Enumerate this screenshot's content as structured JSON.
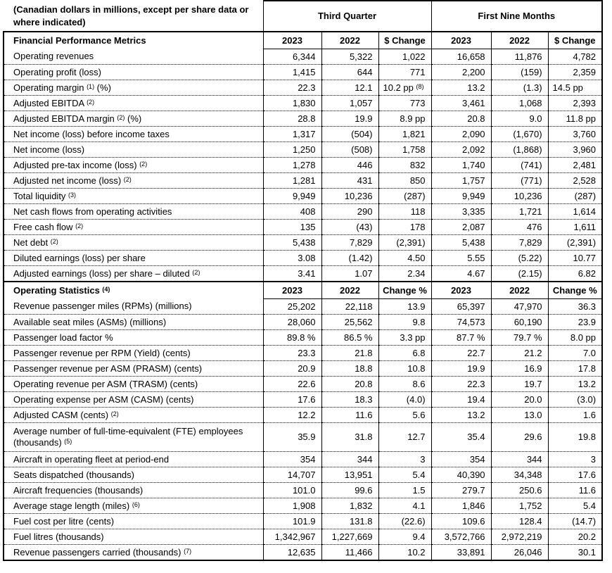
{
  "colors": {
    "text": "#000000",
    "background": "#ffffff",
    "border": "#000000"
  },
  "table": {
    "unit_note": "(Canadian dollars in millions, except per share data or where indicated)",
    "col_groups": [
      "Third Quarter",
      "First Nine Months"
    ],
    "sections": [
      {
        "header": {
          "label": "Financial Performance Metrics",
          "cols": [
            "2023",
            "2022",
            "$ Change",
            "2023",
            "2022",
            "$ Change"
          ]
        },
        "rows": [
          {
            "label": "Operating revenues",
            "values": [
              "6,344",
              "5,322",
              "1,022",
              "16,658",
              "11,876",
              "4,782"
            ]
          },
          {
            "label": "Operating profit (loss)",
            "values": [
              "1,415",
              "644",
              "771",
              "2,200",
              "(159)",
              "2,359"
            ]
          },
          {
            "label": "Operating margin ",
            "sup": "(1)",
            "suffix": " (%)",
            "values": [
              "22.3",
              "12.1",
              {
                "t": "10.2 pp ",
                "sup": "(8)",
                "align": "left"
              },
              "13.2",
              "(1.3)",
              {
                "t": "14.5 pp",
                "align": "left"
              }
            ]
          },
          {
            "label": "Adjusted EBITDA ",
            "sup": "(2)",
            "values": [
              "1,830",
              "1,057",
              "773",
              "3,461",
              "1,068",
              "2,393"
            ]
          },
          {
            "label": "Adjusted EBITDA margin ",
            "sup": "(2)",
            "suffix": " (%)",
            "values": [
              "28.8",
              "19.9",
              "8.9 pp",
              "20.8",
              "9.0",
              "11.8 pp"
            ]
          },
          {
            "label": "Net income (loss) before income taxes",
            "values": [
              "1,317",
              "(504)",
              "1,821",
              "2,090",
              "(1,670)",
              "3,760"
            ]
          },
          {
            "label": "Net income (loss)",
            "values": [
              "1,250",
              "(508)",
              "1,758",
              "2,092",
              "(1,868)",
              "3,960"
            ]
          },
          {
            "label": "Adjusted pre-tax income (loss) ",
            "sup": "(2)",
            "values": [
              "1,278",
              "446",
              "832",
              "1,740",
              "(741)",
              "2,481"
            ]
          },
          {
            "label": "Adjusted net income (loss) ",
            "sup": "(2)",
            "values": [
              "1,281",
              "431",
              "850",
              "1,757",
              "(771)",
              "2,528"
            ]
          },
          {
            "label": "Total liquidity ",
            "sup": "(3)",
            "values": [
              "9,949",
              "10,236",
              "(287)",
              "9,949",
              "10,236",
              "(287)"
            ]
          },
          {
            "label": "Net cash flows from operating activities",
            "values": [
              "408",
              "290",
              "118",
              "3,335",
              "1,721",
              "1,614"
            ]
          },
          {
            "label": "Free cash flow ",
            "sup": "(2)",
            "values": [
              "135",
              "(43)",
              "178",
              "2,087",
              "476",
              "1,611"
            ]
          },
          {
            "label": "Net debt ",
            "sup": "(2)",
            "values": [
              "5,438",
              "7,829",
              "(2,391)",
              "5,438",
              "7,829",
              "(2,391)"
            ]
          },
          {
            "label": "Diluted earnings (loss) per share",
            "values": [
              "3.08",
              "(1.42)",
              "4.50",
              "5.55",
              "(5.22)",
              "10.77"
            ]
          },
          {
            "label": "Adjusted earnings (loss) per share – diluted ",
            "sup": "(2)",
            "values": [
              "3.41",
              "1.07",
              "2.34",
              "4.67",
              "(2.15)",
              "6.82"
            ]
          }
        ]
      },
      {
        "header": {
          "label": "Operating Statistics ",
          "sup": "(4)",
          "cols": [
            "2023",
            "2022",
            "Change %",
            "2023",
            "2022",
            "Change %"
          ]
        },
        "rows": [
          {
            "label": "Revenue passenger miles (RPMs) (millions)",
            "values": [
              "25,202",
              "22,118",
              "13.9",
              "65,397",
              "47,970",
              "36.3"
            ]
          },
          {
            "label": "Available seat miles (ASMs) (millions)",
            "values": [
              "28,060",
              "25,562",
              "9.8",
              "74,573",
              "60,190",
              "23.9"
            ]
          },
          {
            "label": "Passenger load factor %",
            "values": [
              "89.8 %",
              "86.5 %",
              "3.3 pp",
              "87.7 %",
              "79.7 %",
              "8.0 pp"
            ]
          },
          {
            "label": "Passenger revenue per RPM (Yield) (cents)",
            "values": [
              "23.3",
              "21.8",
              "6.8",
              "22.7",
              "21.2",
              "7.0"
            ]
          },
          {
            "label": "Passenger revenue per ASM (PRASM) (cents)",
            "values": [
              "20.9",
              "18.8",
              "10.8",
              "19.9",
              "16.9",
              "17.8"
            ]
          },
          {
            "label": "Operating revenue per ASM (TRASM) (cents)",
            "values": [
              "22.6",
              "20.8",
              "8.6",
              "22.3",
              "19.7",
              "13.2"
            ]
          },
          {
            "label": "Operating expense per ASM (CASM) (cents)",
            "values": [
              "17.6",
              "18.3",
              "(4.0)",
              "19.4",
              "20.0",
              "(3.0)"
            ]
          },
          {
            "label": "Adjusted CASM (cents) ",
            "sup": "(2)",
            "values": [
              "12.2",
              "11.6",
              "5.6",
              "13.2",
              "13.0",
              "1.6"
            ]
          },
          {
            "label": "Average number of full-time-equivalent (FTE) employees (thousands) ",
            "sup": "(5)",
            "tall": true,
            "values": [
              "35.9",
              "31.8",
              "12.7",
              "35.4",
              "29.6",
              "19.8"
            ]
          },
          {
            "label": "Aircraft in operating fleet at period-end",
            "values": [
              "354",
              "344",
              "3",
              "354",
              "344",
              "3"
            ]
          },
          {
            "label": "Seats dispatched (thousands)",
            "values": [
              "14,707",
              "13,951",
              "5.4",
              "40,390",
              "34,348",
              "17.6"
            ]
          },
          {
            "label": "Aircraft frequencies (thousands)",
            "values": [
              "101.0",
              "99.6",
              "1.5",
              "279.7",
              "250.6",
              "11.6"
            ]
          },
          {
            "label": "Average stage length (miles) ",
            "sup": "(6)",
            "values": [
              "1,908",
              "1,832",
              "4.1",
              "1,846",
              "1,752",
              "5.4"
            ]
          },
          {
            "label": "Fuel cost per litre (cents)",
            "values": [
              "101.9",
              "131.8",
              "(22.6)",
              "109.6",
              "128.4",
              "(14.7)"
            ]
          },
          {
            "label": "Fuel litres (thousands)",
            "values": [
              "1,342,967",
              "1,227,669",
              "9.4",
              "3,572,766",
              "2,972,219",
              "20.2"
            ]
          },
          {
            "label": "Revenue passengers carried (thousands) ",
            "sup": "(7)",
            "values": [
              "12,635",
              "11,466",
              "10.2",
              "33,891",
              "26,046",
              "30.1"
            ]
          }
        ]
      }
    ]
  }
}
